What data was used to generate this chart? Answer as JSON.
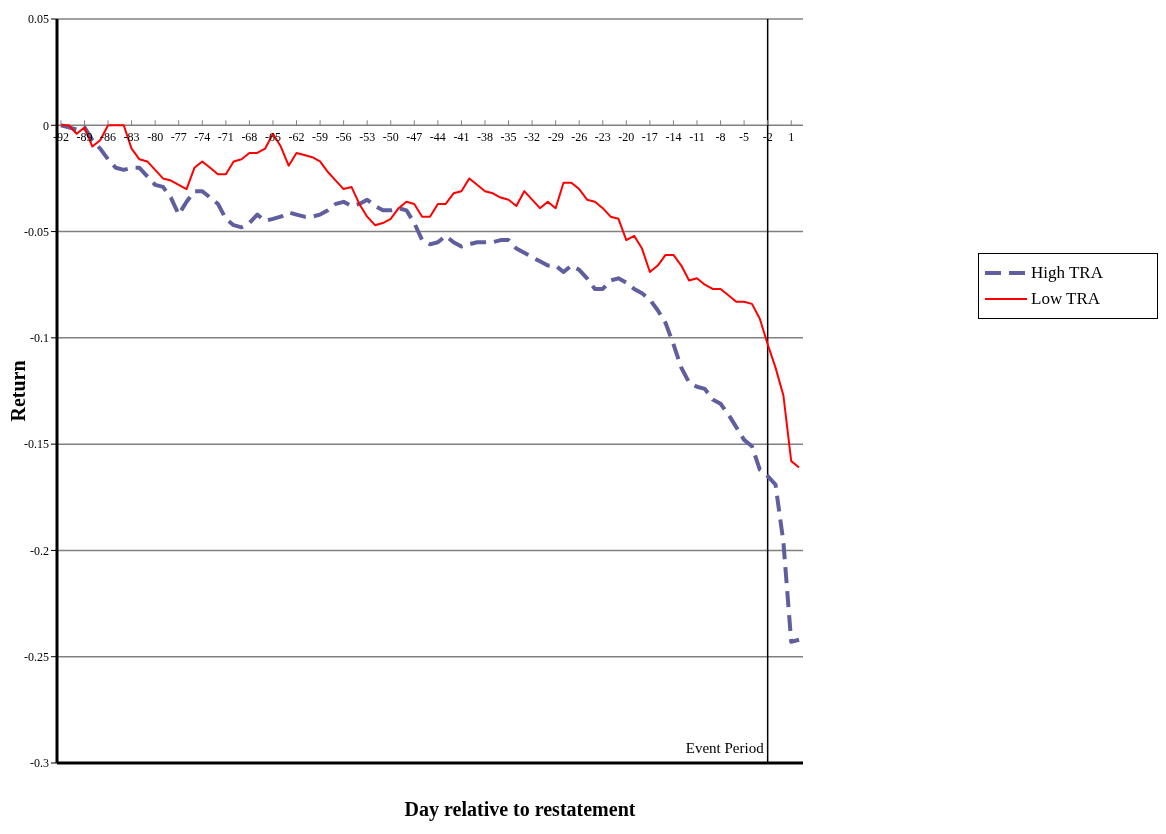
{
  "chart_data": {
    "type": "line",
    "xlabel": "Day relative to restatement",
    "ylabel": "Return",
    "x": [
      -92,
      -91,
      -90,
      -89,
      -88,
      -87,
      -86,
      -85,
      -84,
      -83,
      -82,
      -81,
      -80,
      -79,
      -78,
      -77,
      -76,
      -75,
      -74,
      -73,
      -72,
      -71,
      -70,
      -69,
      -68,
      -67,
      -66,
      -65,
      -64,
      -63,
      -62,
      -61,
      -60,
      -59,
      -58,
      -57,
      -56,
      -55,
      -54,
      -53,
      -52,
      -51,
      -50,
      -49,
      -48,
      -47,
      -46,
      -45,
      -44,
      -43,
      -42,
      -41,
      -40,
      -39,
      -38,
      -37,
      -36,
      -35,
      -34,
      -33,
      -32,
      -31,
      -30,
      -29,
      -28,
      -27,
      -26,
      -25,
      -24,
      -23,
      -22,
      -21,
      -20,
      -19,
      -18,
      -17,
      -16,
      -15,
      -14,
      -13,
      -12,
      -11,
      -10,
      -9,
      -8,
      -7,
      -6,
      -5,
      -4,
      -3,
      -2,
      -1,
      0,
      1,
      2
    ],
    "series": [
      {
        "name": "High TRA",
        "color": "#5f5f9f",
        "line_style": "dashed",
        "values": [
          0,
          -0.001,
          -0.002,
          -0.001,
          -0.007,
          -0.011,
          -0.016,
          -0.02,
          -0.021,
          -0.02,
          -0.02,
          -0.024,
          -0.028,
          -0.029,
          -0.034,
          -0.042,
          -0.036,
          -0.031,
          -0.031,
          -0.034,
          -0.037,
          -0.044,
          -0.047,
          -0.048,
          -0.046,
          -0.042,
          -0.045,
          -0.044,
          -0.043,
          -0.041,
          -0.042,
          -0.043,
          -0.043,
          -0.042,
          -0.04,
          -0.037,
          -0.036,
          -0.038,
          -0.037,
          -0.035,
          -0.038,
          -0.04,
          -0.04,
          -0.039,
          -0.04,
          -0.046,
          -0.054,
          -0.056,
          -0.055,
          -0.052,
          -0.055,
          -0.057,
          -0.056,
          -0.055,
          -0.055,
          -0.055,
          -0.054,
          -0.054,
          -0.058,
          -0.06,
          -0.062,
          -0.064,
          -0.066,
          -0.066,
          -0.069,
          -0.066,
          -0.068,
          -0.072,
          -0.077,
          -0.077,
          -0.073,
          -0.072,
          -0.074,
          -0.077,
          -0.079,
          -0.082,
          -0.087,
          -0.093,
          -0.103,
          -0.114,
          -0.121,
          -0.123,
          -0.124,
          -0.129,
          -0.131,
          -0.136,
          -0.142,
          -0.148,
          -0.151,
          -0.162,
          -0.165,
          -0.169,
          -0.196,
          -0.243,
          -0.242
        ]
      },
      {
        "name": "Low TRA",
        "color": "#ff0000",
        "line_style": "solid",
        "values": [
          0,
          0,
          -0.004,
          -0.001,
          -0.01,
          -0.007,
          0,
          0,
          0,
          -0.011,
          -0.016,
          -0.017,
          -0.021,
          -0.025,
          -0.026,
          -0.028,
          -0.03,
          -0.02,
          -0.017,
          -0.02,
          -0.023,
          -0.023,
          -0.017,
          -0.016,
          -0.013,
          -0.013,
          -0.011,
          -0.004,
          -0.01,
          -0.019,
          -0.013,
          -0.014,
          -0.015,
          -0.017,
          -0.022,
          -0.026,
          -0.03,
          -0.029,
          -0.037,
          -0.043,
          -0.047,
          -0.046,
          -0.044,
          -0.039,
          -0.036,
          -0.037,
          -0.043,
          -0.043,
          -0.037,
          -0.037,
          -0.032,
          -0.031,
          -0.025,
          -0.028,
          -0.031,
          -0.032,
          -0.034,
          -0.035,
          -0.038,
          -0.031,
          -0.035,
          -0.039,
          -0.036,
          -0.039,
          -0.027,
          -0.027,
          -0.03,
          -0.035,
          -0.036,
          -0.039,
          -0.043,
          -0.044,
          -0.054,
          -0.052,
          -0.058,
          -0.069,
          -0.066,
          -0.061,
          -0.061,
          -0.066,
          -0.073,
          -0.072,
          -0.075,
          -0.077,
          -0.077,
          -0.08,
          -0.083,
          -0.083,
          -0.084,
          -0.091,
          -0.103,
          -0.114,
          -0.127,
          -0.158,
          -0.161
        ]
      }
    ],
    "xlim": [
      -92.5,
      2.5
    ],
    "xticks": [
      -92,
      -89,
      -86,
      -83,
      -80,
      -77,
      -74,
      -71,
      -68,
      -65,
      -62,
      -59,
      -56,
      -53,
      -50,
      -47,
      -44,
      -41,
      -38,
      -35,
      -32,
      -29,
      -26,
      -23,
      -20,
      -17,
      -14,
      -11,
      -8,
      -5,
      -2,
      1
    ],
    "ylim": [
      -0.3,
      0.05
    ],
    "yticks": [
      -0.3,
      -0.25,
      -0.2,
      -0.15,
      -0.1,
      -0.05,
      0,
      0.05
    ],
    "ref_lines": [
      {
        "axis": "x",
        "value": -2,
        "label": "Event Period",
        "color": "#000000",
        "line_style": "solid"
      }
    ],
    "grid": "y",
    "legend": "right",
    "marker": "none"
  }
}
